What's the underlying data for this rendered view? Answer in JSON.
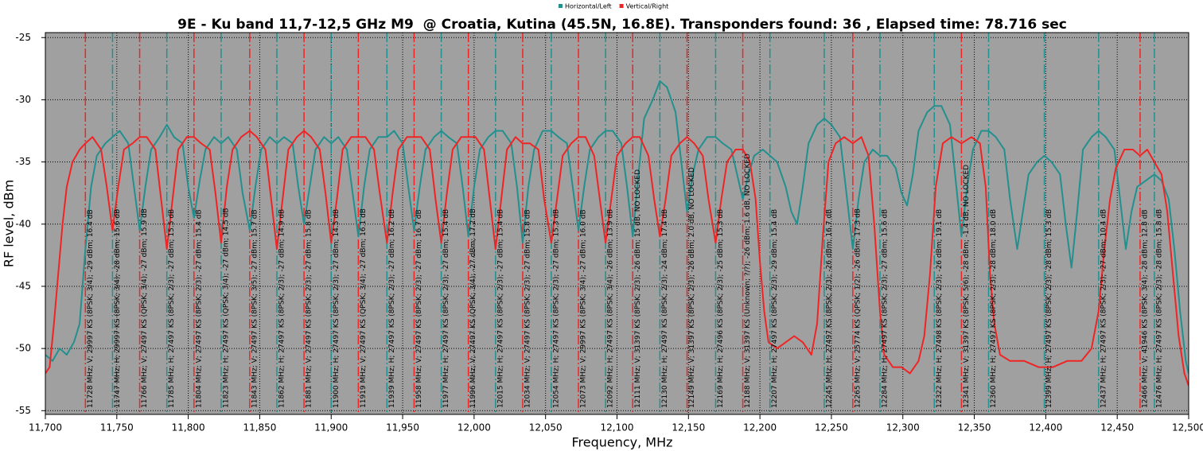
{
  "chart_data": {
    "type": "line",
    "title": "9E - Ku band 11,7-12,5 GHz M9  @ Croatia, Kutina (45.5N, 16.8E). Transponders found: 36 , Elapsed time: 78.716 sec",
    "xlabel": "Frequency, MHz",
    "ylabel": "RF level, dBm",
    "xlim": [
      11700,
      12500
    ],
    "ylim": [
      -55.3,
      -24.6
    ],
    "xticks": [
      {
        "value": 11700,
        "label": "11,700"
      },
      {
        "value": 11750,
        "label": "11,750"
      },
      {
        "value": 11800,
        "label": "11,800"
      },
      {
        "value": 11850,
        "label": "11,850"
      },
      {
        "value": 11900,
        "label": "11,900"
      },
      {
        "value": 11950,
        "label": "11,950"
      },
      {
        "value": 12000,
        "label": "12,000"
      },
      {
        "value": 12050,
        "label": "12,050"
      },
      {
        "value": 12100,
        "label": "12,100"
      },
      {
        "value": 12150,
        "label": "12,150"
      },
      {
        "value": 12200,
        "label": "12,200"
      },
      {
        "value": 12250,
        "label": "12,250"
      },
      {
        "value": 12300,
        "label": "12,300"
      },
      {
        "value": 12350,
        "label": "12,350"
      },
      {
        "value": 12400,
        "label": "12,400"
      },
      {
        "value": 12450,
        "label": "12,450"
      },
      {
        "value": 12500,
        "label": "12,500"
      }
    ],
    "yticks": [
      -25,
      -30,
      -35,
      -40,
      -45,
      -50,
      -55
    ],
    "grid": true,
    "series": [
      {
        "name": "Horizontal/Left",
        "color": "#22908e",
        "x": [
          11700,
          11705,
          11710,
          11715,
          11720,
          11724,
          11728,
          11732,
          11736,
          11742,
          11747,
          11752,
          11758,
          11762,
          11766,
          11770,
          11774,
          11780,
          11785,
          11790,
          11796,
          11800,
          11804,
          11808,
          11812,
          11818,
          11823,
          11828,
          11834,
          11838,
          11843,
          11847,
          11851,
          11857,
          11862,
          11867,
          11873,
          11877,
          11881,
          11885,
          11889,
          11895,
          11900,
          11905,
          11911,
          11915,
          11919,
          11923,
          11927,
          11933,
          11939,
          11944,
          11950,
          11954,
          11958,
          11962,
          11966,
          11972,
          11977,
          11982,
          11988,
          11992,
          11996,
          12000,
          12004,
          12010,
          12015,
          12020,
          12026,
          12030,
          12034,
          12038,
          12042,
          12048,
          12054,
          12059,
          12065,
          12069,
          12073,
          12077,
          12081,
          12087,
          12092,
          12097,
          12103,
          12107,
          12111,
          12115,
          12119,
          12125,
          12130,
          12135,
          12141,
          12145,
          12149,
          12153,
          12157,
          12163,
          12169,
          12174,
          12180,
          12184,
          12188,
          12192,
          12196,
          12202,
          12207,
          12212,
          12218,
          12222,
          12226,
          12230,
          12234,
          12240,
          12245,
          12250,
          12256,
          12260,
          12265,
          12269,
          12273,
          12279,
          12284,
          12289,
          12295,
          12299,
          12303,
          12307,
          12311,
          12317,
          12322,
          12327,
          12333,
          12337,
          12341,
          12345,
          12349,
          12355,
          12360,
          12365,
          12371,
          12375,
          12380,
          12384,
          12388,
          12394,
          12399,
          12404,
          12410,
          12414,
          12418,
          12422,
          12426,
          12432,
          12437,
          12442,
          12448,
          12452,
          12456,
          12460,
          12464,
          12470,
          12476,
          12481,
          12486,
          12490,
          12494,
          12498,
          12500
        ],
        "values": [
          -50.5,
          -51,
          -50,
          -50.5,
          -49.5,
          -48,
          -42,
          -37,
          -34.5,
          -33.5,
          -33,
          -32.5,
          -33.5,
          -37,
          -40.5,
          -37,
          -34,
          -33,
          -32,
          -33,
          -33.5,
          -37,
          -39.5,
          -36.5,
          -34,
          -33,
          -33.5,
          -33,
          -34,
          -37.5,
          -40.5,
          -37,
          -34,
          -33,
          -33.5,
          -33,
          -33.5,
          -37,
          -40,
          -37,
          -34,
          -33,
          -33.5,
          -33,
          -34,
          -37.5,
          -41,
          -37,
          -34,
          -33,
          -33,
          -32.5,
          -33.5,
          -37,
          -40.5,
          -37,
          -34,
          -33,
          -32.5,
          -33,
          -33.5,
          -37,
          -41,
          -37,
          -34,
          -33,
          -32.5,
          -32.5,
          -33.5,
          -37,
          -41.5,
          -37,
          -34,
          -32.5,
          -32.5,
          -33,
          -33.5,
          -37,
          -40.5,
          -37,
          -34,
          -33,
          -32.5,
          -32.5,
          -33.5,
          -37,
          -41,
          -36,
          -31.5,
          -30,
          -28.5,
          -29,
          -31,
          -35,
          -39,
          -36,
          -34,
          -33,
          -33,
          -33.5,
          -34,
          -36,
          -38,
          -36,
          -34.5,
          -34,
          -34.5,
          -35,
          -37,
          -39,
          -40,
          -37,
          -33.5,
          -32,
          -31.5,
          -32,
          -33,
          -37,
          -42,
          -38,
          -35,
          -34,
          -34.5,
          -34.5,
          -35.5,
          -37.5,
          -38.5,
          -36,
          -32.5,
          -31,
          -30.5,
          -30.5,
          -32,
          -36.5,
          -41,
          -37,
          -34,
          -32.5,
          -32.5,
          -33,
          -34,
          -38,
          -42,
          -39,
          -36,
          -35,
          -34.5,
          -35,
          -36,
          -40,
          -43.5,
          -39,
          -34,
          -33,
          -32.5,
          -33,
          -34,
          -38,
          -42,
          -39,
          -37,
          -36.5,
          -36,
          -36.5,
          -38,
          -42,
          -47,
          -51,
          -52
        ],
        "transponders": [
          {
            "freq": 11747,
            "label": "11747 MHz; H; 29997 KS (8PSK; 3/4); -28 dBm; 15.6 dB"
          },
          {
            "freq": 11785,
            "label": "11785 MHz; H; 27497 KS (8PSK; 2/3); -27 dBm; 15.5 dB"
          },
          {
            "freq": 11823,
            "label": "11823 MHz; H; 27497 KS (QPSK; 3/4); -27 dBm; 14.5 dB"
          },
          {
            "freq": 11862,
            "label": "11862 MHz; H; 27497 KS (8PSK; 2/3); -27 dBm; 14.9 dB"
          },
          {
            "freq": 11900,
            "label": "11900 MHz; H; 27497 KS (8PSK; 2/3); -27 dBm; 14.5 dB"
          },
          {
            "freq": 11939,
            "label": "11939 MHz; H; 27497 KS (8PSK; 2/3); -27 dBm; 16.2 dB"
          },
          {
            "freq": 11977,
            "label": "11977 MHz; H; 27497 KS (8PSK; 2/3); -27 dBm; 15.4 dB"
          },
          {
            "freq": 12015,
            "label": "12015 MHz; H; 27497 KS (8PSK; 2/3); -27 dBm; 15.4 dB"
          },
          {
            "freq": 12054,
            "label": "12054 MHz; H; 27497 KS (8PSK; 2/3); -27 dBm; 15.3 dB"
          },
          {
            "freq": 12092,
            "label": "12092 MHz; H; 27497 KS (8PSK; 3/4); -26 dBm; 13.9 dB"
          },
          {
            "freq": 12130,
            "label": "12130 MHz; H; 27497 KS (8PSK; 2/3); -24 dBm; 17.4 dB"
          },
          {
            "freq": 12169,
            "label": "12169 MHz; H; 27496 KS (8PSK; 2/3); -25 dBm; 15.3 dB"
          },
          {
            "freq": 12207,
            "label": "12207 MHz; H; 27497 KS (8PSK; 2/3); -29 dBm; 15.4 dB"
          },
          {
            "freq": 12245,
            "label": "12245 MHz; H; 27497 KS (8PSK; 2/3); -26 dBm; 16.7 dB"
          },
          {
            "freq": 12284,
            "label": "12284 MHz; H; 27497 KS (8PSK; 2/3); -27 dBm; 15.6 dB"
          },
          {
            "freq": 12322,
            "label": "12322 MHz; H; 27498 KS (8PSK; 2/3); -26 dBm; 19.1 dB"
          },
          {
            "freq": 12360,
            "label": "12360 MHz; H; 27497 KS (8PSK; 2/3); -28 dBm; 18.0 dB"
          },
          {
            "freq": 12399,
            "label": "12399 MHz; H; 27497 KS (8PSK; 2/3); -28 dBm; 15.3 dB"
          },
          {
            "freq": 12437,
            "label": "12437 MHz; H; 27497 KS (8PSK; 2/3); -27 dBm; 10.4 dB"
          },
          {
            "freq": 12476,
            "label": "12476 MHz; H; 27497 KS (8PSK; 2/3); -28 dBm; 15.8 dB"
          }
        ]
      },
      {
        "name": "Vertical/Right",
        "color": "#f02424",
        "x": [
          11700,
          11703,
          11706,
          11709,
          11712,
          11715,
          11719,
          11724,
          11728,
          11733,
          11739,
          11743,
          11747,
          11751,
          11755,
          11761,
          11766,
          11771,
          11777,
          11781,
          11785,
          11789,
          11793,
          11799,
          11804,
          11809,
          11815,
          11819,
          11823,
          11827,
          11831,
          11837,
          11843,
          11848,
          11854,
          11858,
          11862,
          11866,
          11870,
          11876,
          11881,
          11886,
          11892,
          11896,
          11900,
          11904,
          11908,
          11914,
          11919,
          11924,
          11930,
          11934,
          11939,
          11943,
          11947,
          11953,
          11958,
          11963,
          11969,
          11973,
          11977,
          11981,
          11985,
          11991,
          11996,
          12001,
          12007,
          12011,
          12015,
          12019,
          12023,
          12029,
          12034,
          12039,
          12045,
          12049,
          12054,
          12058,
          12062,
          12068,
          12073,
          12078,
          12084,
          12088,
          12092,
          12096,
          12100,
          12106,
          12111,
          12116,
          12122,
          12126,
          12130,
          12134,
          12138,
          12144,
          12149,
          12154,
          12160,
          12164,
          12169,
          12173,
          12177,
          12183,
          12188,
          12193,
          12197,
          12200,
          12203,
          12206,
          12212,
          12218,
          12224,
          12230,
          12236,
          12240,
          12244,
          12248,
          12253,
          12259,
          12265,
          12271,
          12276,
          12280,
          12284,
          12287,
          12293,
          12299,
          12305,
          12311,
          12315,
          12319,
          12323,
          12328,
          12334,
          12341,
          12348,
          12354,
          12358,
          12361,
          12364,
          12368,
          12375,
          12385,
          12395,
          12405,
          12415,
          12425,
          12432,
          12437,
          12441,
          12445,
          12449,
          12455,
          12461,
          12466,
          12471,
          12476,
          12481,
          12485,
          12489,
          12493,
          12497,
          12500
        ],
        "values": [
          -52,
          -51.5,
          -48,
          -44,
          -40,
          -37,
          -35,
          -34,
          -33.5,
          -33,
          -34,
          -37,
          -40.5,
          -37,
          -34,
          -33.5,
          -33,
          -33,
          -34,
          -38,
          -42,
          -38,
          -34,
          -33,
          -33,
          -33.5,
          -34,
          -37.5,
          -41.5,
          -37,
          -34,
          -33,
          -32.5,
          -33,
          -34,
          -38,
          -42,
          -38,
          -34,
          -33,
          -32.5,
          -33,
          -34,
          -37.5,
          -41.5,
          -38,
          -34,
          -33,
          -33,
          -33,
          -34,
          -37.5,
          -41.5,
          -37.5,
          -34,
          -33,
          -33,
          -33,
          -34,
          -38,
          -41.5,
          -37.5,
          -34,
          -33,
          -33,
          -33,
          -34,
          -38,
          -42,
          -38,
          -34,
          -33,
          -33.5,
          -33.5,
          -34,
          -38,
          -41.5,
          -38,
          -34.5,
          -33.5,
          -33,
          -33,
          -34.5,
          -38,
          -41.5,
          -38,
          -34.5,
          -33.5,
          -33,
          -33,
          -34.5,
          -38,
          -41,
          -38,
          -34.5,
          -33.5,
          -33,
          -33.5,
          -34.5,
          -38,
          -41.5,
          -38,
          -35,
          -34,
          -34,
          -35,
          -38,
          -43,
          -47,
          -49.5,
          -50,
          -49.5,
          -49,
          -49.5,
          -50.5,
          -48,
          -41,
          -35,
          -33.5,
          -33,
          -33.5,
          -33,
          -34.5,
          -40,
          -47,
          -50.5,
          -51.5,
          -51.5,
          -52,
          -51,
          -49,
          -44,
          -37,
          -33.5,
          -33,
          -33.5,
          -33,
          -33.5,
          -37,
          -44,
          -48,
          -50.5,
          -51,
          -51,
          -51.5,
          -51.5,
          -51,
          -51,
          -50,
          -47,
          -42,
          -38,
          -35.5,
          -34,
          -34,
          -34.5,
          -34,
          -35,
          -36,
          -39,
          -44,
          -49,
          -52,
          -53
        ],
        "transponders": [
          {
            "freq": 11728,
            "label": "11728 MHz; V; 29997 KS (8PSK; 3/4); -29 dBm; 16.4 dB"
          },
          {
            "freq": 11766,
            "label": "11766 MHz; V; 27497 KS (QPSK; 3/4); -27 dBm; 15.9 dB"
          },
          {
            "freq": 11804,
            "label": "11804 MHz; V; 27497 KS (8PSK; 2/3); -27 dBm; 15.4 dB"
          },
          {
            "freq": 11843,
            "label": "11843 MHz; V; 27497 KS (8PSK; 3/5); -27 dBm; 15.7 dB"
          },
          {
            "freq": 11881,
            "label": "11881 MHz; V; 27497 KS (8PSK; 2/3); -27 dBm; 15.8 dB"
          },
          {
            "freq": 11919,
            "label": "11919 MHz; V; 27497 KS (QPSK; 3/4); -27 dBm; 16.1 dB"
          },
          {
            "freq": 11958,
            "label": "11958 MHz; V; 27497 KS (8PSK; 2/3); -27 dBm; 16.7 dB"
          },
          {
            "freq": 11996,
            "label": "11996 MHz; V; 27497 KS (QPSK; 3/4); -27 dBm; 17.2 dB"
          },
          {
            "freq": 12034,
            "label": "12034 MHz; V; 27497 KS (8PSK; 2/3); -27 dBm; 15.8 dB"
          },
          {
            "freq": 12073,
            "label": "12073 MHz; V; 29997 KS (8PSK; 3/4); -27 dBm; 16.0 dB"
          },
          {
            "freq": 12111,
            "label": "12111 MHz; V; 31397 KS (8PSK; 2/3); -26 dBm; 15 dB, NO LOCKED"
          },
          {
            "freq": 12149,
            "label": "12149 MHz; V; 31397 KS (8PSK; 2/3); -26 dBm; 2.0 dB, NO LOCKED"
          },
          {
            "freq": 12188,
            "label": "12188 MHz; V; 31397 KS (Unknown; ?/?); -26 dBm; 1.6 dB, NO LOCKED"
          },
          {
            "freq": 12265,
            "label": "12265 MHz; V; 25774 KS (QPSK; 1/2); -26 dBm; 17.3 dB"
          },
          {
            "freq": 12341,
            "label": "12341 MHz; V; 31397 KS (8PSK; 5/6); -28 dBm; -1.4 dB, NO LOCKED"
          },
          {
            "freq": 12466,
            "label": "12466 MHz; V; 41946 KS (8PSK; 3/4); -28 dBm; 12.8 dB"
          }
        ]
      }
    ]
  }
}
